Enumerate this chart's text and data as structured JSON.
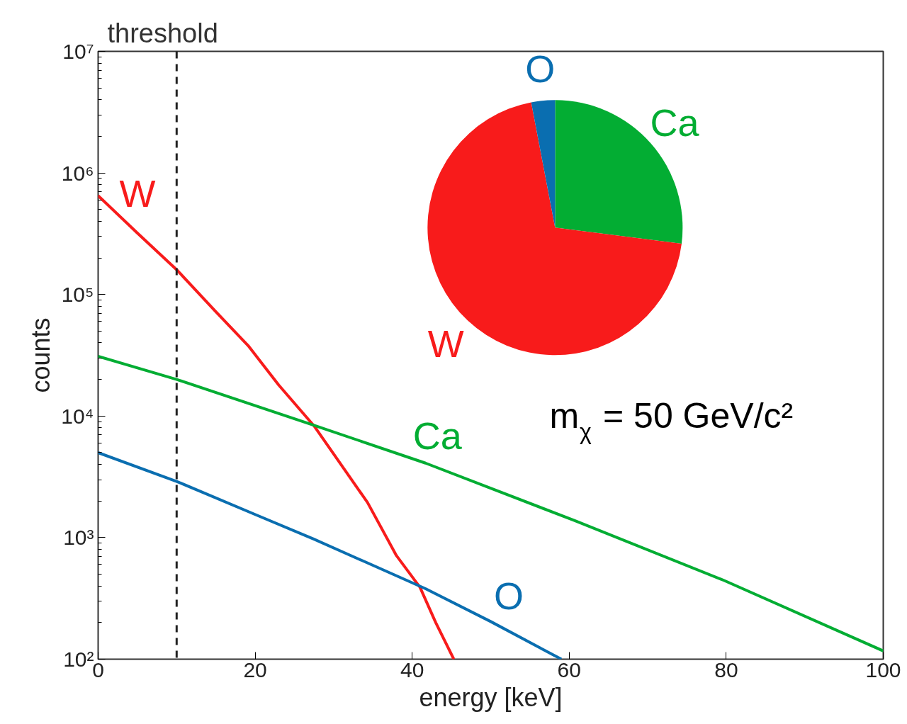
{
  "chart_data": [
    {
      "type": "line",
      "xlabel": "energy [keV]",
      "ylabel": "counts",
      "log": true,
      "grid": false,
      "legend": false,
      "xlim": [
        0,
        100
      ],
      "xticks": [
        0,
        20,
        40,
        60,
        80,
        100
      ],
      "ylim": [
        100,
        10000000
      ],
      "yticks": [
        {
          "value": 100,
          "label": "10²"
        },
        {
          "value": 1000,
          "label": "10³"
        },
        {
          "value": 10000,
          "label": "10⁴"
        },
        {
          "value": 100000,
          "label": "10⁵"
        },
        {
          "value": 1000000,
          "label": "10⁶"
        },
        {
          "value": 10000000,
          "label": "10⁷"
        }
      ],
      "series": [
        {
          "name": "W",
          "color": "#f81b1b",
          "x": [
            0,
            5,
            10,
            15,
            19.1,
            23,
            27.5,
            34.3,
            38,
            41,
            43,
            45.3
          ],
          "values": [
            650000,
            320000,
            160000,
            72000,
            38000,
            18000,
            8300,
            1950,
            710,
            390,
            200,
            100
          ]
        },
        {
          "name": "Ca",
          "color": "#03ad33",
          "x": [
            0,
            10,
            27.5,
            41.7,
            60.7,
            79.7,
            100
          ],
          "values": [
            31000,
            20000,
            8400,
            4100,
            1380,
            445,
            117
          ]
        },
        {
          "name": "O",
          "color": "#0a6eb0",
          "x": [
            0,
            10,
            20,
            27.5,
            41.7,
            50,
            59
          ],
          "values": [
            5000,
            2900,
            1550,
            970,
            380,
            204,
            100
          ]
        }
      ],
      "ref_lines": [
        {
          "axis": "x",
          "value": 10,
          "label": "threshold",
          "color": "#222222",
          "line_style": "dashed"
        }
      ],
      "annotations": [
        "m$_{χ}$ = 50 GeV/c²"
      ]
    },
    {
      "type": "pie",
      "categories": [
        "Ca",
        "W",
        "O"
      ],
      "values": [
        27,
        70,
        3
      ],
      "colors": [
        "#03ad33",
        "#f81b1b",
        "#0a6eb0"
      ]
    }
  ]
}
